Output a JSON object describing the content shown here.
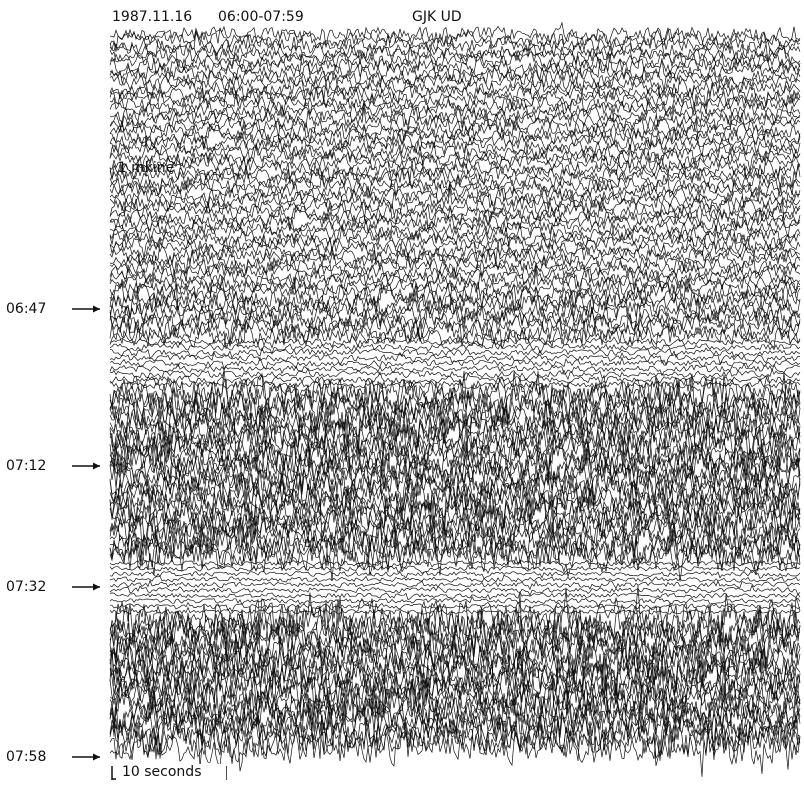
{
  "header": {
    "date": "1987.11.16",
    "time_range": "06:00-07:59",
    "station": "GJK UD"
  },
  "scale": {
    "symbol": "I",
    "label": "1 mkine"
  },
  "time_markers": [
    "06:47",
    "07:12",
    "07:32",
    "07:58"
  ],
  "scale_bar": {
    "label": "10 seconds"
  }
}
